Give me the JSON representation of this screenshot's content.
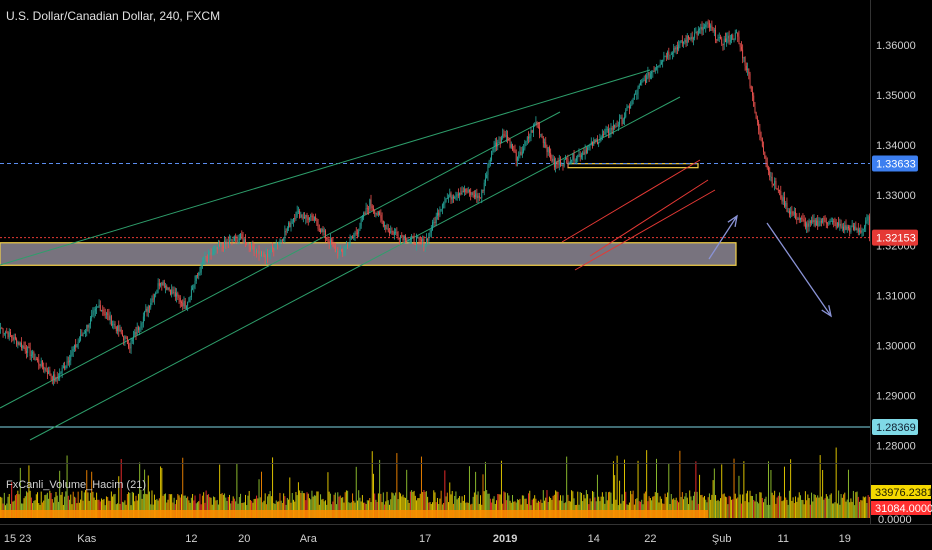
{
  "colors": {
    "background": "#000000",
    "up": "#26a69a",
    "down": "#ef5350",
    "channel_green": "#2e9e6b",
    "channel_red": "#e53935",
    "zone_border": "#f5d24a",
    "zone_fill": "#a09aa8",
    "arrow": "#8a93d6",
    "line_blue": "#5b8def",
    "line_cyan": "#7fd9e6",
    "current_red": "#e53935",
    "vol_a": "#f5d800",
    "vol_b": "#ff3030"
  },
  "chart_data": {
    "type": "candlestick",
    "title": "U.S. Dollar/Canadian Dollar, 240, FXCM",
    "ylim": [
      1.2765,
      1.369
    ],
    "y_ticks": [
      "1.36000",
      "1.35000",
      "1.34000",
      "1.33000",
      "1.32000",
      "1.31000",
      "1.30000",
      "1.29000",
      "1.28000"
    ],
    "y_tick_values": [
      1.36,
      1.35,
      1.34,
      1.33,
      1.32,
      1.31,
      1.3,
      1.29,
      1.28
    ],
    "x_ticks": [
      "15",
      "23",
      "Kas",
      "12",
      "20",
      "Ara",
      "17",
      "2019",
      "14",
      "22",
      "Şub",
      "11",
      "19"
    ],
    "x_tick_bars": [
      -20,
      20,
      70,
      155,
      198,
      250,
      345,
      410,
      482,
      528,
      586,
      636,
      686
    ],
    "bars_total": 707,
    "key_points": [
      [
        0,
        1.3035
      ],
      [
        22,
        1.299
      ],
      [
        45,
        1.293
      ],
      [
        80,
        1.308
      ],
      [
        105,
        1.3
      ],
      [
        130,
        1.313
      ],
      [
        150,
        1.308
      ],
      [
        165,
        1.317
      ],
      [
        180,
        1.32
      ],
      [
        195,
        1.3215
      ],
      [
        215,
        1.3175
      ],
      [
        230,
        1.322
      ],
      [
        240,
        1.3265
      ],
      [
        255,
        1.325
      ],
      [
        275,
        1.318
      ],
      [
        290,
        1.323
      ],
      [
        300,
        1.3285
      ],
      [
        315,
        1.323
      ],
      [
        335,
        1.321
      ],
      [
        345,
        1.3205
      ],
      [
        360,
        1.329
      ],
      [
        375,
        1.331
      ],
      [
        390,
        1.3295
      ],
      [
        400,
        1.3395
      ],
      [
        410,
        1.3425
      ],
      [
        420,
        1.337
      ],
      [
        435,
        1.3445
      ],
      [
        450,
        1.336
      ],
      [
        470,
        1.338
      ],
      [
        490,
        1.342
      ],
      [
        505,
        1.345
      ],
      [
        520,
        1.352
      ],
      [
        540,
        1.358
      ],
      [
        560,
        1.3615
      ],
      [
        575,
        1.364
      ],
      [
        585,
        1.3605
      ],
      [
        598,
        1.362
      ],
      [
        608,
        1.354
      ],
      [
        615,
        1.344
      ],
      [
        625,
        1.334
      ],
      [
        640,
        1.327
      ],
      [
        655,
        1.324
      ],
      [
        670,
        1.325
      ],
      [
        685,
        1.3235
      ],
      [
        700,
        1.323
      ],
      [
        712,
        1.328
      ],
      [
        725,
        1.3265
      ],
      [
        740,
        1.324
      ],
      [
        755,
        1.3275
      ],
      [
        770,
        1.33
      ],
      [
        780,
        1.332
      ],
      [
        790,
        1.334
      ],
      [
        800,
        1.3355
      ],
      [
        808,
        1.3345
      ],
      [
        815,
        1.3215
      ]
    ],
    "last_value": 1.32153,
    "reference_lines": [
      1.33633,
      1.28369
    ],
    "price_tags": [
      {
        "text": "1.33633",
        "value": 1.33633,
        "bg": "#3d7ff0",
        "fg": "#ffffff"
      },
      {
        "text": "1.32153",
        "value": 1.32153,
        "bg": "#e53935",
        "fg": "#ffffff"
      },
      {
        "text": "1.28369",
        "value": 1.28369,
        "bg": "#7fd9e6",
        "fg": "#102030"
      }
    ],
    "support_zone": [
      1.316,
      1.3205
    ],
    "resistance_zone": [
      1.3355,
      1.3363
    ]
  },
  "indicator": {
    "label": "FxCanli_Volume_Hacim (21)",
    "tag_values": [
      {
        "text": "33976.2381",
        "bg": "#f5d800",
        "fg": "#1a1a00"
      },
      {
        "text": "31084.0000",
        "bg": "#ff3030",
        "fg": "#ffffff"
      }
    ],
    "partial_tick": "0.0000"
  }
}
